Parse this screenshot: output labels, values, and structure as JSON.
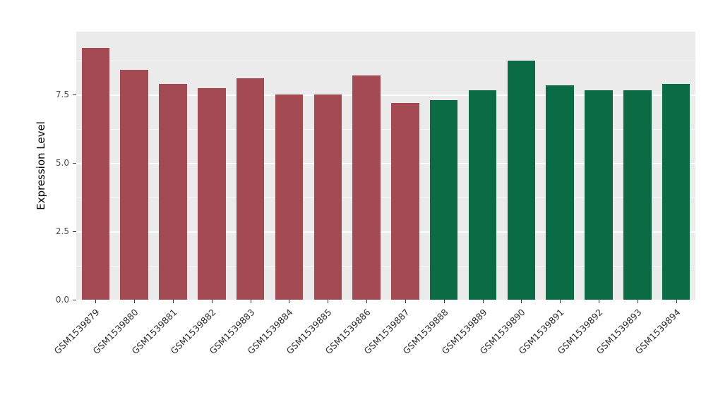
{
  "figure": {
    "background": "#FFFFFF",
    "panel_background": "#EBEBEB"
  },
  "chart_data": {
    "type": "bar",
    "title": "",
    "xlabel": "",
    "ylabel": "Expression Level",
    "categories": [
      "GSM1539879",
      "GSM1539880",
      "GSM1539881",
      "GSM1539882",
      "GSM1539883",
      "GSM1539884",
      "GSM1539885",
      "GSM1539886",
      "GSM1539887",
      "GSM1539888",
      "GSM1539889",
      "GSM1539890",
      "GSM1539891",
      "GSM1539892",
      "GSM1539893",
      "GSM1539894"
    ],
    "values": [
      9.2,
      8.4,
      7.9,
      7.75,
      8.1,
      7.5,
      7.5,
      8.2,
      7.2,
      7.3,
      7.65,
      8.75,
      7.85,
      7.65,
      7.65,
      7.9
    ],
    "groups": [
      "group1",
      "group1",
      "group1",
      "group1",
      "group1",
      "group1",
      "group1",
      "group1",
      "group1",
      "group2",
      "group2",
      "group2",
      "group2",
      "group2",
      "group2",
      "group2"
    ],
    "group_colors": {
      "group1": "#A34A52",
      "group2": "#0A6B45"
    },
    "ylim": [
      0,
      9.8
    ],
    "yticks": [
      0,
      2.5,
      5,
      7.5
    ],
    "ytick_labels": [
      "0.0",
      "2.5",
      "5.0",
      "7.5"
    ],
    "yticks_minor": [
      1.25,
      3.75,
      6.25,
      8.75
    ],
    "bar_width_fraction": 0.72,
    "grid": true,
    "legend_position": "none"
  }
}
